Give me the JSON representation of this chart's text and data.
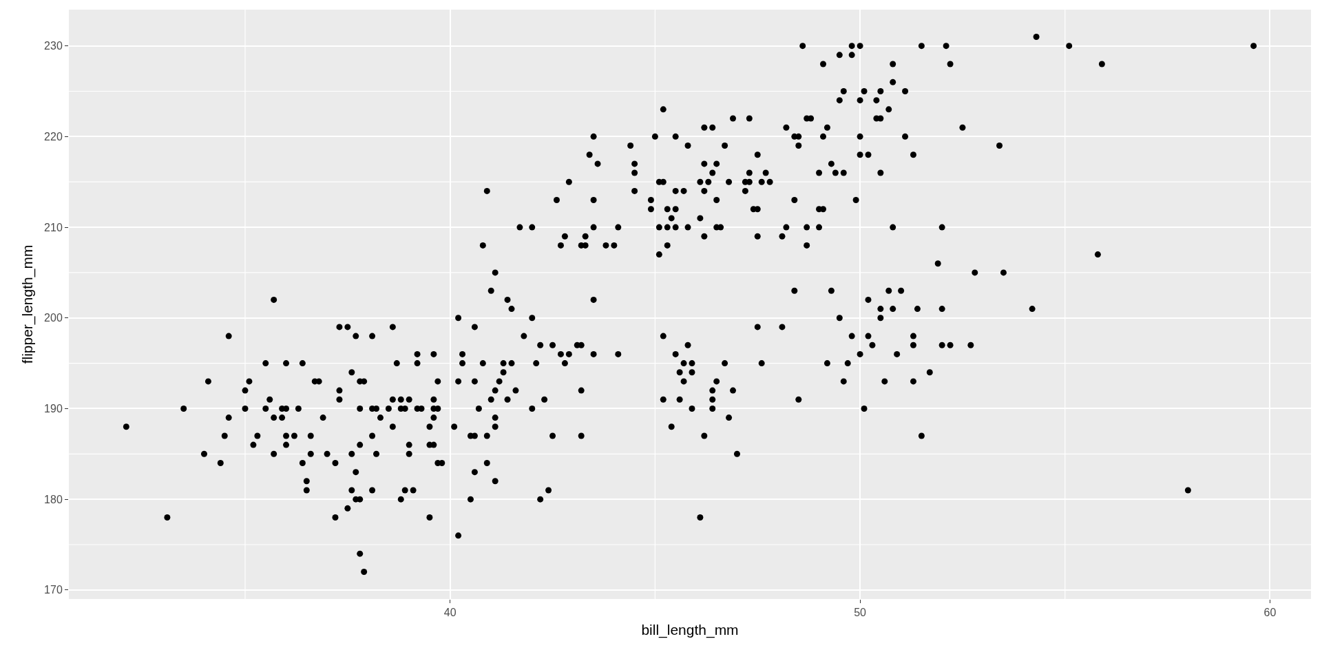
{
  "chart_data": {
    "type": "scatter",
    "xlabel": "bill_length_mm",
    "ylabel": "flipper_length_mm",
    "marker": "circle",
    "grid": true,
    "xlim": [
      30.7,
      61.0
    ],
    "ylim": [
      169.0,
      234.0
    ],
    "xticks": [
      {
        "value": 35,
        "label": null
      },
      40,
      {
        "value": 45,
        "label": null
      },
      50,
      {
        "value": 55,
        "label": null
      },
      60
    ],
    "yticks": [
      170,
      {
        "value": 175,
        "label": null
      },
      180,
      {
        "value": 185,
        "label": null
      },
      190,
      {
        "value": 195,
        "label": null
      },
      200,
      {
        "value": 205,
        "label": null
      },
      210,
      {
        "value": 215,
        "label": null
      },
      220,
      {
        "value": 225,
        "label": null
      },
      230
    ],
    "series": [
      {
        "color": "#000000",
        "x": [
          32.1,
          33.1,
          33.5,
          34.0,
          34.1,
          34.4,
          34.5,
          34.6,
          34.6,
          35.0,
          35.0,
          35.1,
          35.2,
          35.3,
          35.5,
          35.5,
          35.6,
          35.7,
          35.7,
          35.7,
          35.9,
          35.9,
          36.0,
          36.0,
          36.0,
          36.0,
          36.2,
          36.3,
          36.4,
          36.4,
          36.5,
          36.5,
          36.6,
          36.6,
          36.7,
          36.8,
          36.9,
          37.0,
          37.2,
          37.3,
          37.3,
          37.2,
          37.3,
          37.5,
          37.5,
          37.6,
          37.6,
          37.6,
          37.7,
          37.7,
          37.7,
          37.8,
          37.8,
          37.8,
          37.8,
          37.8,
          37.9,
          37.9,
          38.1,
          38.1,
          38.1,
          38.1,
          38.2,
          38.2,
          38.3,
          38.5,
          38.6,
          38.6,
          38.6,
          38.7,
          38.8,
          38.8,
          38.8,
          38.9,
          38.9,
          39.0,
          39.0,
          39.0,
          39.1,
          39.2,
          39.2,
          39.2,
          39.3,
          39.5,
          39.5,
          39.5,
          39.6,
          39.6,
          39.6,
          39.6,
          39.6,
          39.7,
          39.7,
          39.7,
          39.8,
          40.1,
          40.2,
          40.2,
          40.2,
          40.3,
          40.3,
          40.5,
          40.5,
          40.6,
          40.6,
          40.6,
          40.6,
          40.7,
          40.8,
          40.8,
          40.9,
          40.9,
          40.9,
          41.0,
          41.0,
          41.1,
          41.1,
          41.1,
          41.1,
          41.1,
          41.2,
          41.3,
          41.3,
          41.4,
          41.4,
          41.5,
          41.5,
          41.6,
          41.7,
          41.8,
          42.0,
          42.0,
          42.0,
          42.1,
          42.2,
          42.2,
          42.3,
          42.4,
          42.5,
          42.5,
          42.6,
          42.7,
          42.7,
          42.8,
          42.8,
          42.9,
          42.9,
          43.1,
          43.2,
          43.2,
          43.2,
          43.2,
          43.3,
          43.3,
          43.4,
          43.5,
          43.5,
          43.5,
          43.6,
          43.5,
          43.5,
          43.8,
          44.0,
          44.1,
          44.1,
          44.4,
          44.5,
          44.5,
          44.5,
          44.9,
          44.9,
          45.0,
          45.1,
          45.1,
          45.1,
          45.2,
          45.2,
          45.2,
          45.2,
          45.3,
          45.3,
          45.3,
          45.4,
          45.4,
          45.5,
          45.5,
          45.5,
          45.5,
          45.5,
          45.6,
          45.6,
          45.7,
          45.7,
          45.7,
          45.8,
          45.8,
          45.8,
          45.9,
          45.9,
          45.9,
          46.1,
          46.1,
          46.2,
          46.2,
          46.2,
          46.2,
          46.2,
          46.1,
          46.3,
          46.4,
          46.4,
          46.4,
          46.4,
          46.4,
          46.5,
          46.5,
          46.5,
          46.5,
          46.6,
          46.7,
          46.7,
          46.8,
          46.8,
          46.9,
          46.9,
          47.0,
          47.2,
          47.2,
          47.3,
          47.3,
          47.3,
          47.4,
          47.5,
          47.5,
          47.5,
          47.5,
          47.6,
          47.6,
          47.7,
          47.8,
          48.1,
          48.1,
          48.2,
          48.2,
          48.4,
          48.4,
          48.4,
          48.5,
          48.5,
          48.5,
          48.6,
          48.7,
          48.7,
          48.7,
          48.8,
          49.0,
          49.0,
          49.0,
          49.1,
          49.1,
          49.1,
          49.2,
          49.2,
          49.3,
          49.3,
          49.4,
          49.5,
          49.5,
          49.5,
          49.6,
          49.6,
          49.6,
          49.7,
          49.8,
          49.8,
          49.8,
          49.9,
          50.0,
          50.0,
          50.0,
          50.0,
          50.0,
          50.1,
          50.1,
          50.2,
          50.2,
          50.2,
          50.3,
          50.4,
          50.4,
          50.5,
          50.5,
          50.5,
          50.5,
          50.5,
          50.6,
          50.7,
          50.7,
          50.8,
          50.8,
          50.8,
          50.8,
          50.9,
          51.0,
          51.1,
          51.1,
          51.3,
          51.3,
          51.3,
          51.3,
          51.4,
          51.5,
          51.5,
          51.7,
          51.9,
          52.0,
          52.0,
          52.0,
          52.1,
          52.2,
          52.2,
          52.5,
          52.7,
          52.8,
          53.4,
          53.5,
          54.2,
          54.3,
          55.1,
          55.8,
          55.9,
          58.0,
          59.6
        ],
        "values": [
          188,
          178,
          190,
          185,
          193,
          184,
          187,
          189,
          198,
          192,
          190,
          193,
          186,
          187,
          195,
          190,
          191,
          202,
          189,
          185,
          190,
          189,
          190,
          186,
          187,
          195,
          187,
          190,
          195,
          184,
          182,
          181,
          185,
          187,
          193,
          193,
          189,
          185,
          184,
          192,
          191,
          178,
          199,
          199,
          179,
          185,
          194,
          181,
          183,
          198,
          180,
          186,
          180,
          174,
          193,
          190,
          172,
          193,
          187,
          181,
          198,
          190,
          190,
          185,
          189,
          190,
          199,
          188,
          191,
          195,
          180,
          190,
          191,
          190,
          181,
          191,
          186,
          185,
          181,
          195,
          196,
          190,
          190,
          188,
          178,
          186,
          196,
          191,
          189,
          186,
          190,
          190,
          184,
          193,
          184,
          188,
          200,
          176,
          193,
          195,
          196,
          180,
          187,
          199,
          183,
          187,
          193,
          190,
          208,
          195,
          187,
          214,
          184,
          191,
          203,
          188,
          189,
          182,
          205,
          192,
          193,
          195,
          194,
          202,
          191,
          195,
          201,
          192,
          210,
          198,
          200,
          190,
          210,
          195,
          197,
          180,
          191,
          181,
          197,
          187,
          213,
          196,
          208,
          209,
          195,
          196,
          215,
          197,
          197,
          192,
          187,
          208,
          208,
          209,
          218,
          202,
          213,
          220,
          217,
          210,
          196,
          208,
          208,
          210,
          196,
          219,
          217,
          216,
          214,
          213,
          212,
          220,
          215,
          210,
          207,
          198,
          223,
          215,
          191,
          212,
          210,
          208,
          211,
          188,
          210,
          196,
          212,
          214,
          220,
          194,
          191,
          214,
          195,
          193,
          197,
          219,
          210,
          190,
          195,
          194,
          211,
          215,
          221,
          214,
          217,
          209,
          187,
          178,
          215,
          221,
          216,
          192,
          191,
          190,
          213,
          217,
          210,
          193,
          210,
          219,
          195,
          215,
          189,
          192,
          222,
          185,
          215,
          214,
          222,
          216,
          215,
          212,
          212,
          218,
          209,
          199,
          195,
          215,
          216,
          215,
          209,
          199,
          221,
          210,
          213,
          220,
          203,
          220,
          219,
          191,
          230,
          210,
          208,
          222,
          222,
          216,
          210,
          212,
          228,
          220,
          212,
          221,
          195,
          217,
          203,
          216,
          229,
          224,
          200,
          225,
          216,
          193,
          195,
          230,
          229,
          198,
          213,
          230,
          224,
          220,
          218,
          196,
          190,
          225,
          218,
          202,
          198,
          197,
          224,
          222,
          222,
          225,
          216,
          201,
          200,
          193,
          223,
          203,
          228,
          226,
          210,
          201,
          196,
          203,
          225,
          220,
          218,
          198,
          197,
          193,
          201,
          230,
          187,
          194,
          206,
          210,
          201,
          197,
          230,
          228,
          197,
          221,
          197,
          205,
          219,
          205,
          201,
          231,
          230,
          207,
          228,
          181,
          230
        ]
      }
    ]
  }
}
